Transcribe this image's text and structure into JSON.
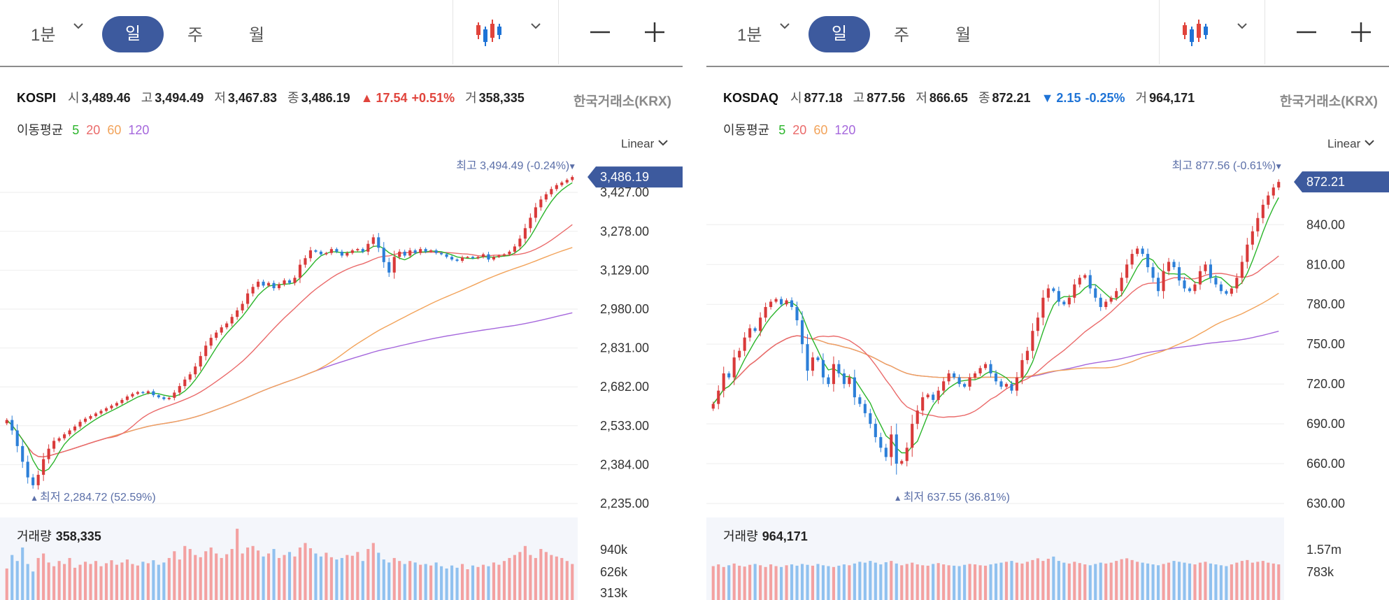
{
  "colors": {
    "up": "#e0443c",
    "down": "#1e73d6",
    "candle_up": "#d93a3a",
    "candle_down": "#2c7fd8",
    "vol_up": "#f3a1a1",
    "vol_down": "#90c1ef",
    "ma5": "#2bb52b",
    "ma20": "#ea6a6a",
    "ma60": "#f2a35a",
    "ma120": "#a567dc",
    "accent": "#3d5a9e",
    "current_tag": "#3d5a9e"
  },
  "panels": [
    {
      "toolbar": {
        "interval": "1분",
        "day": "일",
        "week": "주",
        "month": "월",
        "chart_type_icon": "candlestick-icon",
        "zoom_out_icon": "minus-icon",
        "zoom_in_icon": "plus-icon"
      },
      "info": {
        "symbol": "KOSPI",
        "open_label": "시",
        "open": "3,489.46",
        "high_label": "고",
        "high": "3,494.49",
        "low_label": "저",
        "low": "3,467.83",
        "close_label": "종",
        "close": "3,486.19",
        "change_arrow": "▲",
        "change": "17.54",
        "change_pct": "+0.51%",
        "direction": "up",
        "volume_label": "거",
        "volume": "358,335",
        "exchange": "한국거래소(KRX)"
      },
      "ma": {
        "title": "이동평균",
        "p5": "5",
        "p20": "20",
        "p60": "60",
        "p120": "120"
      },
      "scale": "Linear",
      "chart_data": {
        "type": "candlestick",
        "ylim": [
          2235,
          3494.49
        ],
        "y_ticks": [
          "3,427.00",
          "3,278.00",
          "3,129.00",
          "2,980.00",
          "2,831.00",
          "2,682.00",
          "2,533.00",
          "2,384.00",
          "2,235.00"
        ],
        "current_value": "3,486.19",
        "high_label": "최고",
        "high_value": "3,494.49 (-0.24%)",
        "high_marker": "▼",
        "low_label": "최저",
        "low_value": "2,284.72 (52.59%)",
        "low_marker": "▲",
        "closes": [
          2555,
          2515,
          2455,
          2395,
          2335,
          2305,
          2345,
          2405,
          2445,
          2475,
          2485,
          2500,
          2515,
          2530,
          2548,
          2560,
          2570,
          2580,
          2590,
          2600,
          2610,
          2620,
          2632,
          2645,
          2655,
          2662,
          2658,
          2665,
          2650,
          2642,
          2635,
          2640,
          2660,
          2685,
          2710,
          2730,
          2760,
          2800,
          2840,
          2870,
          2890,
          2910,
          2925,
          2950,
          2975,
          3000,
          3040,
          3065,
          3085,
          3070,
          3080,
          3060,
          3075,
          3090,
          3080,
          3100,
          3150,
          3175,
          3205,
          3200,
          3190,
          3195,
          3210,
          3200,
          3185,
          3195,
          3205,
          3210,
          3200,
          3230,
          3255,
          3215,
          3160,
          3120,
          3180,
          3200,
          3185,
          3205,
          3195,
          3210,
          3200,
          3205,
          3195,
          3190,
          3180,
          3170,
          3165,
          3178,
          3180,
          3175,
          3180,
          3190,
          3170,
          3180,
          3185,
          3190,
          3200,
          3220,
          3250,
          3290,
          3330,
          3370,
          3400,
          3420,
          3440,
          3455,
          3465,
          3475,
          3486.19
        ],
        "volume_ticks": [
          "940k",
          "626k",
          "313k"
        ],
        "volume_max": 1100,
        "volumes": [
          420,
          600,
          520,
          700,
          480,
          380,
          560,
          620,
          500,
          450,
          520,
          480,
          560,
          430,
          470,
          510,
          480,
          520,
          450,
          490,
          530,
          470,
          500,
          540,
          480,
          460,
          510,
          490,
          530,
          470,
          500,
          560,
          650,
          540,
          720,
          680,
          600,
          570,
          650,
          700,
          620,
          560,
          610,
          680,
          950,
          620,
          700,
          720,
          660,
          580,
          620,
          680,
          560,
          600,
          640,
          580,
          700,
          760,
          690,
          620,
          580,
          630,
          570,
          540,
          560,
          600,
          590,
          640,
          520,
          680,
          760,
          630,
          540,
          500,
          560,
          520,
          480,
          520,
          500,
          470,
          480,
          460,
          500,
          450,
          420,
          460,
          430,
          480,
          410,
          460,
          440,
          470,
          450,
          500,
          470,
          520,
          560,
          600,
          640,
          720,
          600,
          560,
          680,
          640,
          600,
          580,
          560,
          520,
          480
        ]
      },
      "volume_label": {
        "title": "거래량",
        "value": "358,335"
      }
    },
    {
      "toolbar": {
        "interval": "1분",
        "day": "일",
        "week": "주",
        "month": "월",
        "chart_type_icon": "candlestick-icon",
        "zoom_out_icon": "minus-icon",
        "zoom_in_icon": "plus-icon"
      },
      "info": {
        "symbol": "KOSDAQ",
        "open_label": "시",
        "open": "877.18",
        "high_label": "고",
        "high": "877.56",
        "low_label": "저",
        "low": "866.65",
        "close_label": "종",
        "close": "872.21",
        "change_arrow": "▼",
        "change": "2.15",
        "change_pct": "-0.25%",
        "direction": "down",
        "volume_label": "거",
        "volume": "964,171",
        "exchange": "한국거래소(KRX)"
      },
      "ma": {
        "title": "이동평균",
        "p5": "5",
        "p20": "20",
        "p60": "60",
        "p120": "120"
      },
      "scale": "Linear",
      "chart_data": {
        "type": "candlestick",
        "ylim": [
          630,
          877.56
        ],
        "y_ticks": [
          "840.00",
          "810.00",
          "780.00",
          "750.00",
          "720.00",
          "690.00",
          "660.00",
          "630.00"
        ],
        "current_value": "872.21",
        "high_label": "최고",
        "high_value": "877.56 (-0.61%)",
        "high_marker": "▼",
        "low_label": "최저",
        "low_value": "637.55 (36.81%)",
        "low_marker": "▲",
        "closes": [
          705,
          715,
          728,
          725,
          740,
          745,
          755,
          762,
          760,
          770,
          778,
          782,
          784,
          780,
          783,
          778,
          768,
          750,
          730,
          740,
          738,
          725,
          720,
          735,
          728,
          720,
          725,
          710,
          705,
          698,
          690,
          680,
          672,
          665,
          682,
          660,
          662,
          672,
          690,
          700,
          710,
          712,
          708,
          715,
          722,
          728,
          725,
          720,
          718,
          725,
          728,
          732,
          735,
          728,
          722,
          718,
          720,
          715,
          725,
          738,
          745,
          760,
          770,
          785,
          792,
          790,
          782,
          780,
          785,
          795,
          800,
          802,
          792,
          785,
          778,
          782,
          785,
          790,
          800,
          810,
          818,
          822,
          818,
          808,
          800,
          790,
          805,
          812,
          808,
          798,
          792,
          790,
          795,
          805,
          810,
          800,
          795,
          790,
          788,
          792,
          800,
          812,
          825,
          835,
          845,
          855,
          862,
          868,
          872.21
        ],
        "volume_ticks": [
          "1.57m",
          "783k"
        ],
        "volume_max": 1900,
        "volumes": [
          780,
          820,
          760,
          800,
          840,
          790,
          770,
          810,
          830,
          800,
          760,
          820,
          780,
          760,
          800,
          820,
          790,
          830,
          810,
          790,
          830,
          800,
          780,
          760,
          790,
          820,
          800,
          840,
          880,
          860,
          900,
          860,
          820,
          870,
          900,
          840,
          800,
          830,
          860,
          820,
          800,
          790,
          830,
          850,
          820,
          800,
          790,
          780,
          810,
          830,
          820,
          800,
          790,
          820,
          840,
          860,
          880,
          900,
          860,
          840,
          880,
          920,
          960,
          900,
          950,
          1000,
          900,
          860,
          840,
          880,
          850,
          820,
          800,
          830,
          860,
          840,
          860,
          900,
          940,
          960,
          920,
          880,
          860,
          840,
          820,
          800,
          830,
          860,
          900,
          880,
          860,
          840,
          820,
          860,
          880,
          840,
          820,
          800,
          780,
          820,
          860,
          900,
          920,
          860,
          880,
          900,
          860,
          840,
          820
        ]
      },
      "volume_label": {
        "title": "거래량",
        "value": "964,171"
      }
    }
  ]
}
